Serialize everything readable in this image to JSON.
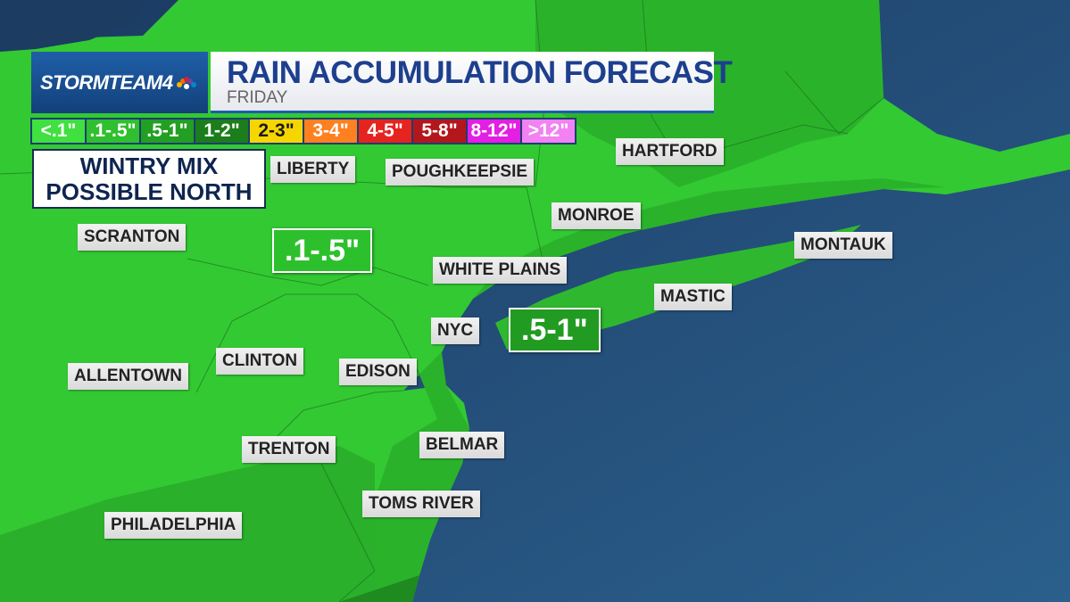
{
  "header": {
    "brand": "STORMTEAM4",
    "title": "RAIN ACCUMULATION FORECAST",
    "subtitle": "FRIDAY"
  },
  "legend": [
    {
      "label": "<.1\"",
      "color": "#3fe03f",
      "text_color": "#ffffff"
    },
    {
      "label": ".1-.5\"",
      "color": "#2fbf2f",
      "text_color": "#ffffff"
    },
    {
      "label": ".5-1\"",
      "color": "#239f23",
      "text_color": "#ffffff"
    },
    {
      "label": "1-2\"",
      "color": "#1b7d1b",
      "text_color": "#ffffff"
    },
    {
      "label": "2-3\"",
      "color": "#f6d600",
      "text_color": "#1a1a1a"
    },
    {
      "label": "3-4\"",
      "color": "#ff8020",
      "text_color": "#ffffff"
    },
    {
      "label": "4-5\"",
      "color": "#e52420",
      "text_color": "#ffffff"
    },
    {
      "label": "5-8\"",
      "color": "#b3171c",
      "text_color": "#ffffff"
    },
    {
      "label": "8-12\"",
      "color": "#e21fe2",
      "text_color": "#ffffff"
    },
    {
      "label": ">12\"",
      "color": "#f281f2",
      "text_color": "#ffffff"
    }
  ],
  "callout": {
    "lines": [
      "WINTRY MIX",
      "POSSIBLE NORTH"
    ]
  },
  "cities": [
    "LIBERTY",
    "POUGHKEEPSIE",
    "HARTFORD",
    "MONROE",
    "SCRANTON",
    "WHITE PLAINS",
    "MONTAUK",
    "MASTIC",
    "NYC",
    "CLINTON",
    "EDISON",
    "ALLENTOWN",
    "TRENTON",
    "BELMAR",
    "TOMS RIVER",
    "PHILADELPHIA"
  ],
  "amounts": [
    ".1-.5\"",
    ".5-1\""
  ]
}
